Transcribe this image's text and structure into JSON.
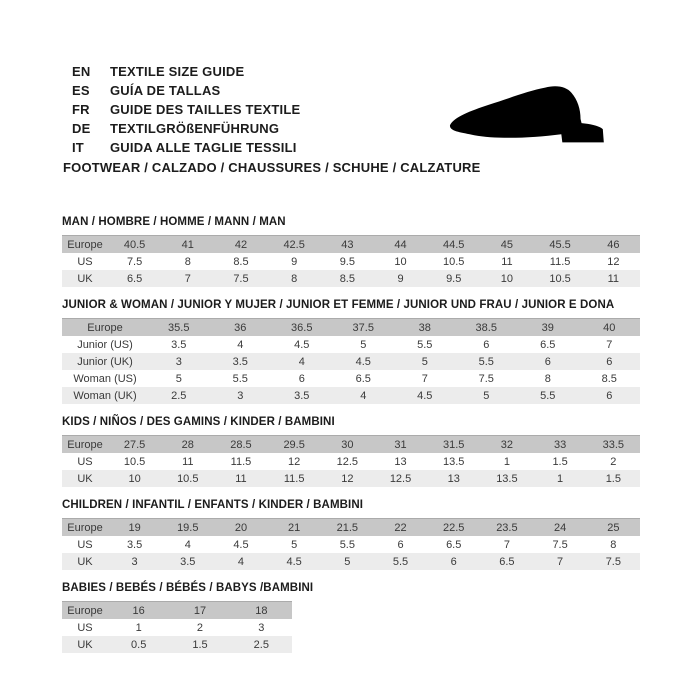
{
  "languages": [
    {
      "code": "EN",
      "label": "TEXTILE SIZE GUIDE"
    },
    {
      "code": "ES",
      "label": "GUÍA DE TALLAS"
    },
    {
      "code": "FR",
      "label": "GUIDE DES TAILLES TEXTILE"
    },
    {
      "code": "DE",
      "label": "TEXTILGRÖßENFÜHRUNG"
    },
    {
      "code": "IT",
      "label": "GUIDA ALLE TAGLIE TESSILI"
    }
  ],
  "section_title": "FOOTWEAR / CALZADO / CHAUSSURES / SCHUHE / CALZATURE",
  "icon": "dress-shoe-silhouette",
  "colors": {
    "header_row": "#c7c7c7",
    "alt_row": "#ececec",
    "text": "#2e2e2e",
    "shoe": "#000000"
  },
  "tables": [
    {
      "title": "MAN / HOMBRE / HOMME / MANN / MAN",
      "rows": [
        {
          "label": "Europe",
          "values": [
            "40.5",
            "41",
            "42",
            "42.5",
            "43",
            "44",
            "44.5",
            "45",
            "45.5",
            "46"
          ]
        },
        {
          "label": "US",
          "values": [
            "7.5",
            "8",
            "8.5",
            "9",
            "9.5",
            "10",
            "10.5",
            "11",
            "11.5",
            "12"
          ]
        },
        {
          "label": "UK",
          "values": [
            "6.5",
            "7",
            "7.5",
            "8",
            "8.5",
            "9",
            "9.5",
            "10",
            "10.5",
            "11"
          ]
        }
      ]
    },
    {
      "title": "JUNIOR & WOMAN / JUNIOR Y MUJER / JUNIOR ET FEMME / JUNIOR UND FRAU / JUNIOR E DONA",
      "rows": [
        {
          "label": "Europe",
          "values": [
            "35.5",
            "36",
            "36.5",
            "37.5",
            "38",
            "38.5",
            "39",
            "40"
          ]
        },
        {
          "label": "Junior (US)",
          "values": [
            "3.5",
            "4",
            "4.5",
            "5",
            "5.5",
            "6",
            "6.5",
            "7"
          ]
        },
        {
          "label": "Junior (UK)",
          "values": [
            "3",
            "3.5",
            "4",
            "4.5",
            "5",
            "5.5",
            "6",
            "6"
          ]
        },
        {
          "label": "Woman (US)",
          "values": [
            "5",
            "5.5",
            "6",
            "6.5",
            "7",
            "7.5",
            "8",
            "8.5"
          ]
        },
        {
          "label": "Woman (UK)",
          "values": [
            "2.5",
            "3",
            "3.5",
            "4",
            "4.5",
            "5",
            "5.5",
            "6"
          ]
        }
      ]
    },
    {
      "title": "KIDS / NIÑOS / DES GAMINS / KINDER / BAMBINI",
      "rows": [
        {
          "label": "Europe",
          "values": [
            "27.5",
            "28",
            "28.5",
            "29.5",
            "30",
            "31",
            "31.5",
            "32",
            "33",
            "33.5"
          ]
        },
        {
          "label": "US",
          "values": [
            "10.5",
            "11",
            "11.5",
            "12",
            "12.5",
            "13",
            "13.5",
            "1",
            "1.5",
            "2"
          ]
        },
        {
          "label": "UK",
          "values": [
            "10",
            "10.5",
            "11",
            "11.5",
            "12",
            "12.5",
            "13",
            "13.5",
            "1",
            "1.5"
          ]
        }
      ]
    },
    {
      "title": "CHILDREN / INFANTIL / ENFANTS / KINDER / BAMBINI",
      "rows": [
        {
          "label": "Europe",
          "values": [
            "19",
            "19.5",
            "20",
            "21",
            "21.5",
            "22",
            "22.5",
            "23.5",
            "24",
            "25"
          ]
        },
        {
          "label": "US",
          "values": [
            "3.5",
            "4",
            "4.5",
            "5",
            "5.5",
            "6",
            "6.5",
            "7",
            "7.5",
            "8"
          ]
        },
        {
          "label": "UK",
          "values": [
            "3",
            "3.5",
            "4",
            "4.5",
            "5",
            "5.5",
            "6",
            "6.5",
            "7",
            "7.5"
          ]
        }
      ]
    },
    {
      "title": "BABIES / BEBÉS / BÉBÉS / BABYS /BAMBINI",
      "rows": [
        {
          "label": "Europe",
          "values": [
            "16",
            "17",
            "18"
          ]
        },
        {
          "label": "US",
          "values": [
            "1",
            "2",
            "3"
          ]
        },
        {
          "label": "UK",
          "values": [
            "0.5",
            "1.5",
            "2.5"
          ]
        }
      ]
    }
  ]
}
